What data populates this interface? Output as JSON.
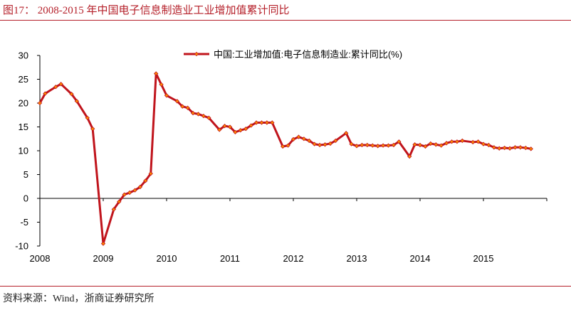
{
  "figure": {
    "title": "图17：  2008-2015 年中国电子信息制造业工业增加值累计同比",
    "source": "资料来源：Wind，浙商证券研究所"
  },
  "colors": {
    "accent": "#b5202a",
    "series_line": "#c0141c",
    "marker_fill": "#ff8c00"
  },
  "chart_data": {
    "type": "line",
    "title": "",
    "xlabel": "",
    "ylabel": "",
    "ylim": [
      -10,
      30
    ],
    "yticks": [
      -10,
      -5,
      0,
      5,
      10,
      15,
      20,
      25,
      30
    ],
    "xlim": [
      "2008-01",
      "2015-12"
    ],
    "xticks": [
      "2008",
      "2009",
      "2010",
      "2011",
      "2012",
      "2013",
      "2014",
      "2015"
    ],
    "grid": false,
    "legend": "top-right",
    "series": [
      {
        "name": "中国:工业增加值:电子信息制造业:累计同比(%)",
        "points": [
          [
            "2008-01",
            20.0
          ],
          [
            "2008-02",
            22.0
          ],
          [
            "2008-04",
            23.4
          ],
          [
            "2008-05",
            24.0
          ],
          [
            "2008-07",
            21.9
          ],
          [
            "2008-08",
            20.4
          ],
          [
            "2008-10",
            16.9
          ],
          [
            "2008-11",
            14.6
          ],
          [
            "2009-01",
            -9.5
          ],
          [
            "2009-03",
            -2.3
          ],
          [
            "2009-04",
            -0.7
          ],
          [
            "2009-05",
            0.8
          ],
          [
            "2009-06",
            1.2
          ],
          [
            "2009-07",
            1.7
          ],
          [
            "2009-08",
            2.4
          ],
          [
            "2009-09",
            3.7
          ],
          [
            "2009-10",
            5.2
          ],
          [
            "2009-11",
            26.2
          ],
          [
            "2009-12",
            23.9
          ],
          [
            "2010-01",
            21.6
          ],
          [
            "2010-03",
            20.4
          ],
          [
            "2010-04",
            19.3
          ],
          [
            "2010-05",
            19.0
          ],
          [
            "2010-06",
            17.9
          ],
          [
            "2010-07",
            17.7
          ],
          [
            "2010-08",
            17.3
          ],
          [
            "2010-09",
            16.9
          ],
          [
            "2010-11",
            14.4
          ],
          [
            "2010-12",
            15.2
          ],
          [
            "2011-01",
            15.0
          ],
          [
            "2011-02",
            13.9
          ],
          [
            "2011-03",
            14.3
          ],
          [
            "2011-04",
            14.6
          ],
          [
            "2011-05",
            15.3
          ],
          [
            "2011-06",
            15.9
          ],
          [
            "2011-07",
            15.9
          ],
          [
            "2011-08",
            15.9
          ],
          [
            "2011-09",
            15.9
          ],
          [
            "2011-11",
            10.9
          ],
          [
            "2011-12",
            11.1
          ],
          [
            "2012-01",
            12.4
          ],
          [
            "2012-02",
            12.9
          ],
          [
            "2012-03",
            12.5
          ],
          [
            "2012-04",
            12.1
          ],
          [
            "2012-05",
            11.4
          ],
          [
            "2012-06",
            11.2
          ],
          [
            "2012-07",
            11.3
          ],
          [
            "2012-08",
            11.5
          ],
          [
            "2012-09",
            12.1
          ],
          [
            "2012-11",
            13.7
          ],
          [
            "2012-12",
            11.4
          ],
          [
            "2013-01",
            11.0
          ],
          [
            "2013-02",
            11.2
          ],
          [
            "2013-03",
            11.2
          ],
          [
            "2013-04",
            11.1
          ],
          [
            "2013-05",
            11.0
          ],
          [
            "2013-06",
            11.1
          ],
          [
            "2013-07",
            11.1
          ],
          [
            "2013-08",
            11.2
          ],
          [
            "2013-09",
            11.9
          ],
          [
            "2013-11",
            8.8
          ],
          [
            "2013-12",
            11.3
          ],
          [
            "2014-01",
            11.2
          ],
          [
            "2014-02",
            10.9
          ],
          [
            "2014-03",
            11.5
          ],
          [
            "2014-04",
            11.3
          ],
          [
            "2014-05",
            11.1
          ],
          [
            "2014-06",
            11.6
          ],
          [
            "2014-07",
            11.9
          ],
          [
            "2014-08",
            11.9
          ],
          [
            "2014-09",
            12.1
          ],
          [
            "2014-11",
            11.8
          ],
          [
            "2014-12",
            11.9
          ],
          [
            "2015-01",
            11.4
          ],
          [
            "2015-02",
            11.2
          ],
          [
            "2015-03",
            10.7
          ],
          [
            "2015-04",
            10.5
          ],
          [
            "2015-05",
            10.6
          ],
          [
            "2015-06",
            10.5
          ],
          [
            "2015-07",
            10.7
          ],
          [
            "2015-08",
            10.7
          ],
          [
            "2015-09",
            10.6
          ],
          [
            "2015-10",
            10.4
          ]
        ]
      }
    ]
  }
}
